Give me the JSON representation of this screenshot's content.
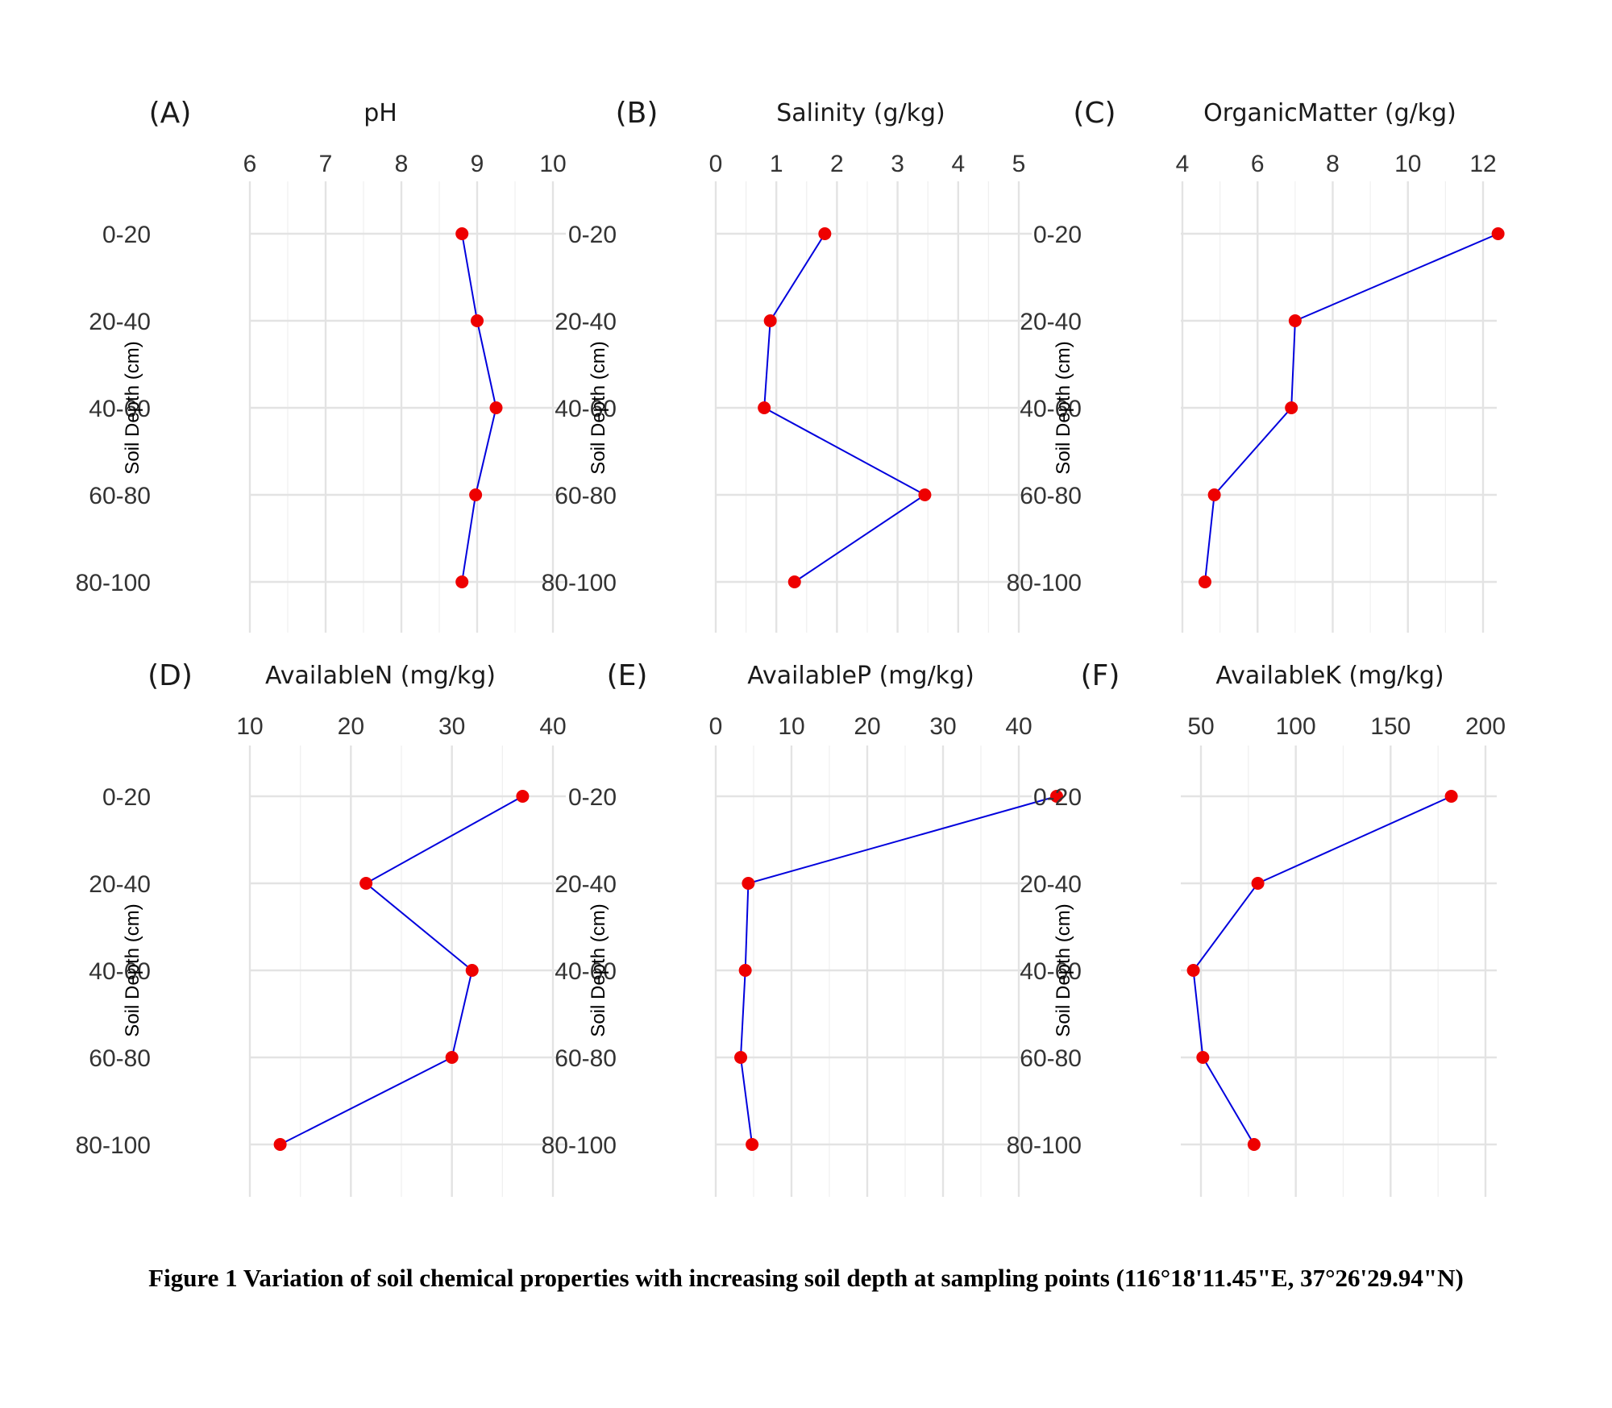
{
  "caption": "Figure 1 Variation of soil chemical properties with increasing soil depth at sampling points  (116°18'11.45\"E, 37°26'29.94\"N)",
  "colors": {
    "line": "#0000dd",
    "point": "#ee0000",
    "grid": "#e3e3e3"
  },
  "chart_data": [
    {
      "panel": "(A)",
      "type": "line",
      "title": "pH",
      "xlabel": "",
      "ylabel": "Soil Depth (cm)",
      "categories": [
        "0-20",
        "20-40",
        "40-60",
        "60-80",
        "80-100"
      ],
      "values": [
        8.8,
        9.0,
        9.25,
        8.98,
        8.8
      ],
      "xlim": [
        6,
        10
      ],
      "xticks": [
        6,
        7,
        8,
        9,
        10
      ],
      "grid": true,
      "x_axis_position": "top"
    },
    {
      "panel": "(B)",
      "type": "line",
      "title": "Salinity (g/kg)",
      "xlabel": "",
      "ylabel": "Soil Depth (cm)",
      "categories": [
        "0-20",
        "20-40",
        "40-60",
        "60-80",
        "80-100"
      ],
      "values": [
        1.8,
        0.9,
        0.8,
        3.45,
        1.3
      ],
      "xlim": [
        0,
        5
      ],
      "xticks": [
        0,
        1,
        2,
        3,
        4,
        5
      ],
      "grid": true,
      "x_axis_position": "top"
    },
    {
      "panel": "(C)",
      "type": "line",
      "title": "OrganicMatter (g/kg)",
      "xlabel": "",
      "ylabel": "Soil Depth (cm)",
      "categories": [
        "0-20",
        "20-40",
        "40-60",
        "60-80",
        "80-100"
      ],
      "values": [
        12.4,
        7.0,
        6.9,
        4.85,
        4.6
      ],
      "xlim": [
        4,
        12
      ],
      "xticks": [
        4,
        6,
        8,
        10,
        12
      ],
      "grid": true,
      "x_axis_position": "top"
    },
    {
      "panel": "(D)",
      "type": "line",
      "title": "AvailableN (mg/kg)",
      "xlabel": "",
      "ylabel": "Soil Depth (cm)",
      "categories": [
        "0-20",
        "20-40",
        "40-60",
        "60-80",
        "80-100"
      ],
      "values": [
        37.0,
        21.5,
        32.0,
        30.0,
        13.0
      ],
      "xlim": [
        10,
        40
      ],
      "xticks": [
        10,
        20,
        30,
        40
      ],
      "grid": true,
      "x_axis_position": "top"
    },
    {
      "panel": "(E)",
      "type": "line",
      "title": "AvailableP (mg/kg)",
      "xlabel": "",
      "ylabel": "Soil Depth (cm)",
      "categories": [
        "0-20",
        "20-40",
        "40-60",
        "60-80",
        "80-100"
      ],
      "values": [
        45.0,
        4.3,
        3.9,
        3.3,
        4.8
      ],
      "xlim": [
        0,
        45
      ],
      "xticks": [
        0,
        10,
        20,
        30,
        40
      ],
      "grid": true,
      "x_axis_position": "top"
    },
    {
      "panel": "(F)",
      "type": "line",
      "title": "AvailableK (mg/kg)",
      "xlabel": "",
      "ylabel": "Soil Depth (cm)",
      "categories": [
        "0-20",
        "20-40",
        "40-60",
        "60-80",
        "80-100"
      ],
      "values": [
        182,
        80,
        46,
        51,
        78
      ],
      "xlim": [
        50,
        200
      ],
      "xticks": [
        50,
        100,
        150,
        200
      ],
      "grid": true,
      "x_axis_position": "top"
    }
  ]
}
